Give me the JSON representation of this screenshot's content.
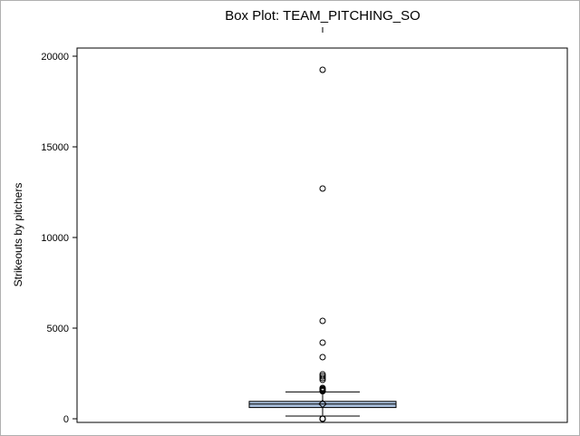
{
  "chart_data": {
    "type": "box",
    "title": "Box Plot: TEAM_PITCHING_SO",
    "xlabel": "",
    "ylabel": "Strikeouts by pitchers",
    "ylim": [
      -200,
      20450
    ],
    "yticks": [
      0,
      5000,
      10000,
      15000,
      20000
    ],
    "grid": false,
    "box": {
      "q1": 620,
      "median": 810,
      "q3": 960,
      "mean": 820,
      "whisker_low": 150,
      "whisker_high": 1480
    },
    "outliers": [
      0,
      0,
      0,
      0,
      1520,
      1560,
      1600,
      1650,
      1700,
      2150,
      2250,
      2350,
      2450,
      3400,
      4200,
      5400,
      12700,
      19250
    ],
    "colors": {
      "box_fill": "#a9bfdc",
      "box_stroke": "#000000",
      "frame": "#000000"
    }
  }
}
